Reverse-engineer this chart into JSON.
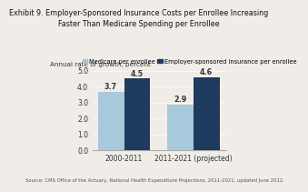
{
  "title_line1": "Exhibit 9. Employer-Sponsored Insurance Costs per Enrollee Increasing",
  "title_line2": "Faster Than Medicare Spending per Enrollee",
  "ylabel": "Annual rate of growth, percent",
  "categories": [
    "2000-2011",
    "2011-2021 (projected)"
  ],
  "medicare_values": [
    3.7,
    2.9
  ],
  "employer_values": [
    4.5,
    4.6
  ],
  "medicare_color": "#a8c8dc",
  "employer_color": "#1e3a5f",
  "bg_color": "#f0ede8",
  "ylim": [
    0,
    5.0
  ],
  "yticks": [
    0.0,
    1.0,
    2.0,
    3.0,
    4.0,
    5.0
  ],
  "legend_medicare": "Medicare per enrollee",
  "legend_employer": "Employer-sponsored insurance per enrollee",
  "source": "Source: CMS Office of the Actuary, National Health Expenditure Projections, 2011-2021, updated June 2012.",
  "bar_width": 0.32,
  "title_fontsize": 5.8,
  "label_fontsize": 5.2,
  "tick_fontsize": 5.5,
  "value_fontsize": 5.8,
  "legend_fontsize": 4.8,
  "source_fontsize": 3.8
}
